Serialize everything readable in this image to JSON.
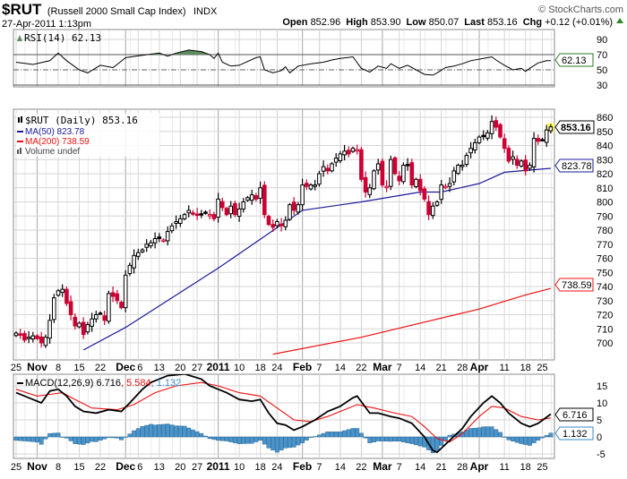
{
  "header": {
    "symbol": "$RUT",
    "name": "(Russell 2000 Small Cap Index)",
    "exchange": "INDX",
    "copyright": "© StockCharts.com",
    "datetime": "27-Apr-2011 1:13pm",
    "open_label": "Open",
    "open": "852.96",
    "high_label": "High",
    "high": "853.90",
    "low_label": "Low",
    "low": "850.07",
    "last_label": "Last",
    "last": "853.16",
    "chg_label": "Chg",
    "chg": "+0.12 (+0.01%)"
  },
  "colors": {
    "up": "#000000",
    "down": "#cc0033",
    "ma50": "#1a1a9a",
    "ma200": "#ee1111",
    "macd": "#000000",
    "signal": "#ee1111",
    "hist": "#4b93c8",
    "rsi_ob": "#5f8a5f",
    "highlight": "#ffff66"
  },
  "legend": {
    "rsi": "RSI(14) 62.13",
    "price": "$RUT (Daily) 853.16",
    "ma50": "MA(50) 823.78",
    "ma200": "MA(200) 738.59",
    "volume": "Volume undef",
    "macd": "MACD(12,26,9) 6.716",
    "macd_signal": ", 5.584",
    "macd_hist": ", 1.132"
  },
  "tags": {
    "rsi": "62.13",
    "price": "853.16",
    "ma50": "823.78",
    "ma200": "738.59",
    "macd": "6.716",
    "hist": "1.132"
  },
  "chart_data": [
    {
      "type": "candlestick",
      "title": "$RUT (Daily)",
      "x_start": "2010-10-25",
      "x_end": "2011-04-27",
      "ylim": [
        695,
        862
      ],
      "yticks": [
        700,
        710,
        720,
        730,
        740,
        750,
        760,
        770,
        780,
        790,
        800,
        810,
        820,
        830,
        840,
        850,
        860
      ],
      "xticks": [
        {
          "i": 0,
          "label": "25"
        },
        {
          "i": 5,
          "label": "Nov",
          "major": true
        },
        {
          "i": 10,
          "label": "8"
        },
        {
          "i": 15,
          "label": "15"
        },
        {
          "i": 20,
          "label": "22"
        },
        {
          "i": 26,
          "label": "Dec",
          "major": true
        },
        {
          "i": 29,
          "label": "6"
        },
        {
          "i": 34,
          "label": "13"
        },
        {
          "i": 39,
          "label": "20"
        },
        {
          "i": 43,
          "label": "27"
        },
        {
          "i": 48,
          "label": "2011",
          "major": true
        },
        {
          "i": 53,
          "label": "10"
        },
        {
          "i": 58,
          "label": "18"
        },
        {
          "i": 62,
          "label": "24"
        },
        {
          "i": 68,
          "label": "Feb",
          "major": true
        },
        {
          "i": 72,
          "label": "7"
        },
        {
          "i": 77,
          "label": "14"
        },
        {
          "i": 82,
          "label": "22"
        },
        {
          "i": 87,
          "label": "Mar",
          "major": true
        },
        {
          "i": 91,
          "label": "7"
        },
        {
          "i": 96,
          "label": "14"
        },
        {
          "i": 101,
          "label": "21"
        },
        {
          "i": 106,
          "label": "28"
        },
        {
          "i": 110,
          "label": "Apr",
          "major": true
        },
        {
          "i": 116,
          "label": "11"
        },
        {
          "i": 121,
          "label": "18"
        },
        {
          "i": 125,
          "label": "25"
        }
      ],
      "close": [
        707,
        706,
        702,
        704,
        705,
        703,
        700,
        704,
        716,
        732,
        737,
        738,
        728,
        720,
        712,
        714,
        706,
        713,
        717,
        720,
        721,
        716,
        735,
        733,
        730,
        725,
        748,
        755,
        762,
        764,
        766,
        770,
        771,
        774,
        774,
        773,
        779,
        783,
        786,
        788,
        791,
        794,
        792,
        791,
        791,
        792,
        791,
        788,
        802,
        796,
        791,
        797,
        791,
        795,
        800,
        803,
        805,
        802,
        810,
        791,
        784,
        782,
        786,
        783,
        787,
        798,
        794,
        798,
        812,
        811,
        812,
        812,
        820,
        825,
        822,
        827,
        831,
        834,
        836,
        834,
        838,
        837,
        816,
        807,
        810,
        822,
        827,
        812,
        811,
        830,
        820,
        815,
        826,
        826,
        812,
        816,
        808,
        802,
        791,
        797,
        800,
        812,
        811,
        813,
        822,
        826,
        826,
        833,
        838,
        842,
        846,
        847,
        849,
        857,
        853,
        846,
        838,
        829,
        832,
        826,
        829,
        822,
        826,
        845,
        843,
        844,
        851,
        853.16
      ],
      "ma50": [
        [
          16,
          695
        ],
        [
          26,
          711
        ],
        [
          48,
          753
        ],
        [
          68,
          794
        ],
        [
          82,
          800
        ],
        [
          96,
          807
        ],
        [
          101,
          807
        ],
        [
          110,
          813
        ],
        [
          116,
          821
        ],
        [
          127,
          823.78
        ]
      ],
      "ma200": [
        [
          61,
          692
        ],
        [
          82,
          704
        ],
        [
          110,
          724
        ],
        [
          121,
          734
        ],
        [
          127,
          738.59
        ]
      ]
    },
    {
      "type": "line",
      "title": "RSI(14)",
      "ylim": [
        25,
        100
      ],
      "yticks": [
        30,
        50,
        70,
        90
      ],
      "points": [
        [
          0,
          60
        ],
        [
          4,
          57
        ],
        [
          8,
          62
        ],
        [
          10,
          72
        ],
        [
          12,
          62
        ],
        [
          15,
          50
        ],
        [
          17,
          46
        ],
        [
          20,
          56
        ],
        [
          23,
          53
        ],
        [
          24,
          57
        ],
        [
          26,
          66
        ],
        [
          30,
          69
        ],
        [
          34,
          72
        ],
        [
          36,
          68
        ],
        [
          38,
          72
        ],
        [
          41,
          76
        ],
        [
          44,
          74
        ],
        [
          46,
          70
        ],
        [
          47,
          65
        ],
        [
          48,
          72
        ],
        [
          49,
          60
        ],
        [
          51,
          55
        ],
        [
          53,
          56
        ],
        [
          57,
          66
        ],
        [
          58,
          67
        ],
        [
          59,
          50
        ],
        [
          61,
          46
        ],
        [
          63,
          49
        ],
        [
          64,
          54
        ],
        [
          65,
          46
        ],
        [
          67,
          55
        ],
        [
          70,
          58
        ],
        [
          73,
          60
        ],
        [
          75,
          63
        ],
        [
          77,
          65
        ],
        [
          80,
          67
        ],
        [
          82,
          52
        ],
        [
          84,
          47
        ],
        [
          86,
          55
        ],
        [
          88,
          52
        ],
        [
          89,
          58
        ],
        [
          91,
          52
        ],
        [
          93,
          56
        ],
        [
          95,
          50
        ],
        [
          97,
          44
        ],
        [
          99,
          43
        ],
        [
          100,
          46
        ],
        [
          102,
          53
        ],
        [
          104,
          55
        ],
        [
          106,
          58
        ],
        [
          108,
          62
        ],
        [
          111,
          65
        ],
        [
          113,
          67
        ],
        [
          114,
          63
        ],
        [
          116,
          56
        ],
        [
          118,
          50
        ],
        [
          120,
          52
        ],
        [
          121,
          48
        ],
        [
          122,
          52
        ],
        [
          124,
          59
        ],
        [
          126,
          62
        ],
        [
          127,
          62.13
        ]
      ]
    },
    {
      "type": "line",
      "title": "MACD(12,26,9)",
      "ylim": [
        -6,
        18
      ],
      "yticks": [
        -5,
        0,
        5,
        10,
        15
      ],
      "macd": [
        [
          0,
          13
        ],
        [
          4,
          11
        ],
        [
          6,
          10
        ],
        [
          8,
          13.5
        ],
        [
          10,
          14
        ],
        [
          12,
          12
        ],
        [
          14,
          9
        ],
        [
          16,
          7.5
        ],
        [
          19,
          7
        ],
        [
          22,
          8
        ],
        [
          25,
          7.5
        ],
        [
          27,
          10
        ],
        [
          30,
          14
        ],
        [
          32,
          16
        ],
        [
          36,
          18
        ],
        [
          40,
          18.5
        ],
        [
          44,
          17
        ],
        [
          46,
          15
        ],
        [
          48,
          14
        ],
        [
          50,
          13
        ],
        [
          53,
          11
        ],
        [
          56,
          10.5
        ],
        [
          58,
          11
        ],
        [
          60,
          7
        ],
        [
          62,
          4
        ],
        [
          64,
          3.5
        ],
        [
          66,
          2
        ],
        [
          68,
          3
        ],
        [
          71,
          5
        ],
        [
          74,
          7.5
        ],
        [
          77,
          9
        ],
        [
          80,
          11.5
        ],
        [
          81,
          12
        ],
        [
          84,
          7
        ],
        [
          86,
          7
        ],
        [
          89,
          6
        ],
        [
          91,
          5.5
        ],
        [
          94,
          4
        ],
        [
          97,
          0
        ],
        [
          99,
          -4
        ],
        [
          100,
          -4.5
        ],
        [
          103,
          -1
        ],
        [
          106,
          2.5
        ],
        [
          108,
          6
        ],
        [
          111,
          10
        ],
        [
          113,
          12
        ],
        [
          115,
          10
        ],
        [
          117,
          7
        ],
        [
          120,
          4
        ],
        [
          122,
          3
        ],
        [
          124,
          4
        ],
        [
          127,
          6.716
        ]
      ],
      "signal": [
        [
          0,
          14
        ],
        [
          5,
          12
        ],
        [
          8,
          12.5
        ],
        [
          11,
          13
        ],
        [
          14,
          11
        ],
        [
          18,
          8.5
        ],
        [
          24,
          8
        ],
        [
          28,
          9.5
        ],
        [
          33,
          13
        ],
        [
          38,
          15
        ],
        [
          44,
          16
        ],
        [
          48,
          15
        ],
        [
          53,
          13
        ],
        [
          58,
          12
        ],
        [
          62,
          8.5
        ],
        [
          66,
          5
        ],
        [
          70,
          4.5
        ],
        [
          74,
          6
        ],
        [
          78,
          8
        ],
        [
          81,
          9.5
        ],
        [
          85,
          8.5
        ],
        [
          90,
          7
        ],
        [
          94,
          6
        ],
        [
          97,
          3
        ],
        [
          100,
          -0.5
        ],
        [
          103,
          -1.5
        ],
        [
          106,
          1
        ],
        [
          110,
          6
        ],
        [
          113,
          9
        ],
        [
          116,
          8.5
        ],
        [
          120,
          6
        ],
        [
          124,
          5
        ],
        [
          127,
          5.584
        ]
      ]
    }
  ]
}
